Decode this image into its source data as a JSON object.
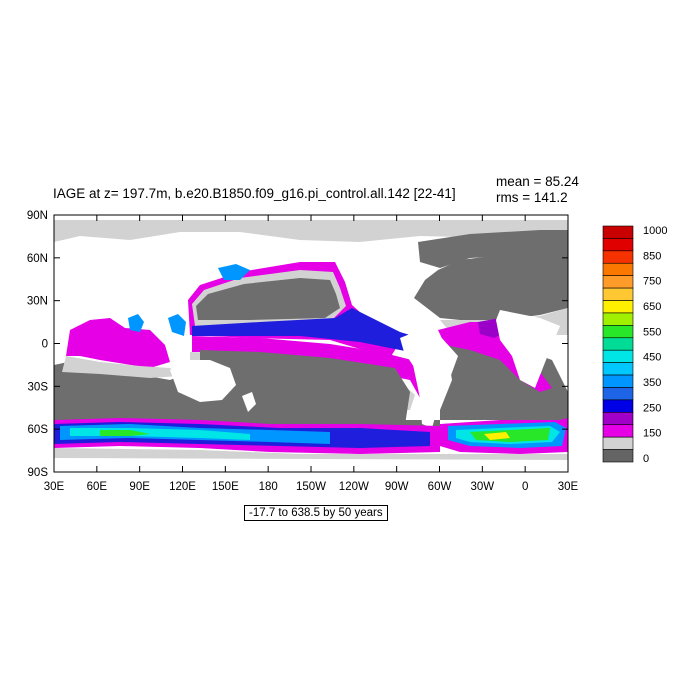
{
  "title": "IAGE at z= 197.7m, b.e20.B1850.f09_g16.pi_control.all.142 [22-41]",
  "stats": {
    "mean": "mean = 85.24",
    "rms": "rms = 141.2"
  },
  "range_label": "-17.7 to 638.5 by 50 years",
  "axes": {
    "lat_labels": [
      "90N",
      "60N",
      "30N",
      "0",
      "30S",
      "60S",
      "90S"
    ],
    "lon_labels": [
      "30E",
      "60E",
      "90E",
      "120E",
      "150E",
      "180",
      "150W",
      "120W",
      "90W",
      "60W",
      "30W",
      "0",
      "30E"
    ]
  },
  "colorbar": {
    "labels": [
      "1000",
      "850",
      "750",
      "650",
      "550",
      "450",
      "350",
      "250",
      "150",
      "0"
    ],
    "colors": [
      "#c80000",
      "#e00000",
      "#f53200",
      "#fa7800",
      "#ff9b28",
      "#ffc832",
      "#fff000",
      "#a0f000",
      "#28e628",
      "#00dc96",
      "#00e6e6",
      "#00c8ff",
      "#0096ff",
      "#1e64e6",
      "#0000e6",
      "#a000c8",
      "#e600e6",
      "#d2d2d2",
      "#646464"
    ]
  },
  "map_colors": {
    "land": "#ffffff",
    "deep_ocean": "#6e6e6e",
    "low": "#d2d2d2",
    "magenta": "#e600e6",
    "purple": "#9b00c8",
    "blue": "#1e1edc",
    "light_blue": "#0096ff",
    "cyan": "#00e6e6",
    "green": "#28e628",
    "yellow": "#fff000"
  }
}
